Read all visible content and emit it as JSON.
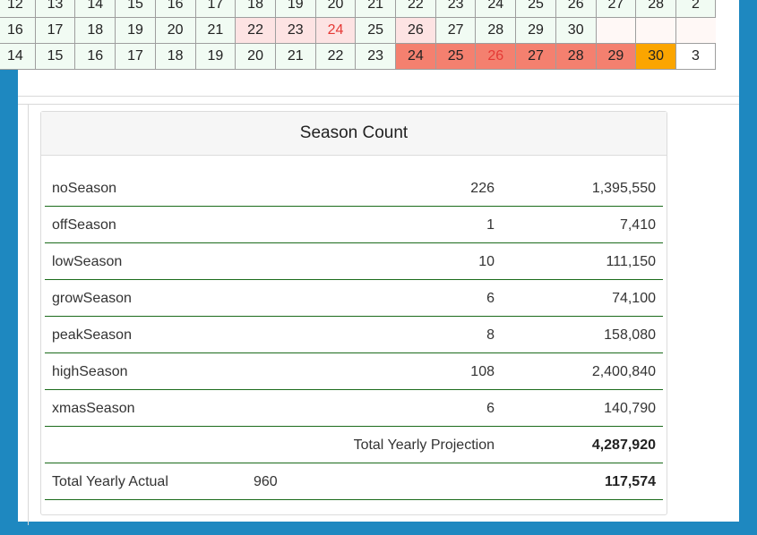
{
  "calendar": {
    "rows": [
      [
        {
          "v": "12"
        },
        {
          "v": "13"
        },
        {
          "v": "14"
        },
        {
          "v": "15"
        },
        {
          "v": "16"
        },
        {
          "v": "17"
        },
        {
          "v": "18"
        },
        {
          "v": "19"
        },
        {
          "v": "20"
        },
        {
          "v": "21"
        },
        {
          "v": "22"
        },
        {
          "v": "23"
        },
        {
          "v": "24"
        },
        {
          "v": "25"
        },
        {
          "v": "26"
        },
        {
          "v": "27"
        },
        {
          "v": "28"
        },
        {
          "v": "2"
        }
      ],
      [
        {
          "v": "16"
        },
        {
          "v": "17"
        },
        {
          "v": "18"
        },
        {
          "v": "19"
        },
        {
          "v": "20"
        },
        {
          "v": "21"
        },
        {
          "v": "22",
          "s": "pink"
        },
        {
          "v": "23",
          "s": "pink"
        },
        {
          "v": "24",
          "s": "pink txt-red"
        },
        {
          "v": "25"
        },
        {
          "v": "26",
          "s": "pink"
        },
        {
          "v": "27"
        },
        {
          "v": "28"
        },
        {
          "v": "29"
        },
        {
          "v": "30"
        },
        {
          "v": "",
          "s": "empty"
        },
        {
          "v": "",
          "s": "empty"
        },
        {
          "v": "",
          "s": "empty"
        }
      ],
      [
        {
          "v": "14"
        },
        {
          "v": "15"
        },
        {
          "v": "16"
        },
        {
          "v": "17"
        },
        {
          "v": "18"
        },
        {
          "v": "19"
        },
        {
          "v": "20"
        },
        {
          "v": "21"
        },
        {
          "v": "22"
        },
        {
          "v": "23"
        },
        {
          "v": "24",
          "s": "red"
        },
        {
          "v": "25",
          "s": "red"
        },
        {
          "v": "26",
          "s": "red txt-red"
        },
        {
          "v": "27",
          "s": "red"
        },
        {
          "v": "28",
          "s": "red"
        },
        {
          "v": "29",
          "s": "red"
        },
        {
          "v": "30",
          "s": "orange"
        },
        {
          "v": "3",
          "s": "blank"
        }
      ]
    ]
  },
  "season_count": {
    "title": "Season Count",
    "seasons": [
      {
        "name": "noSeason",
        "count": "226",
        "amount": "1,395,550"
      },
      {
        "name": "offSeason",
        "count": "1",
        "amount": "7,410"
      },
      {
        "name": "lowSeason",
        "count": "10",
        "amount": "111,150"
      },
      {
        "name": "growSeason",
        "count": "6",
        "amount": "74,100"
      },
      {
        "name": "peakSeason",
        "count": "8",
        "amount": "158,080"
      },
      {
        "name": "highSeason",
        "count": "108",
        "amount": "2,400,840"
      },
      {
        "name": "xmasSeason",
        "count": "6",
        "amount": "140,790"
      }
    ],
    "projection_label": "Total Yearly Projection",
    "projection_total": "4,287,920",
    "actual_label": "Total Yearly Actual",
    "actual_count": "960",
    "actual_total": "117,574"
  },
  "colors": {
    "background": "#1e88c0",
    "row_divider": "#1b6b1b",
    "highlight_pink": "#fde3e3",
    "highlight_red": "#f4806f",
    "highlight_orange": "#fba500"
  }
}
